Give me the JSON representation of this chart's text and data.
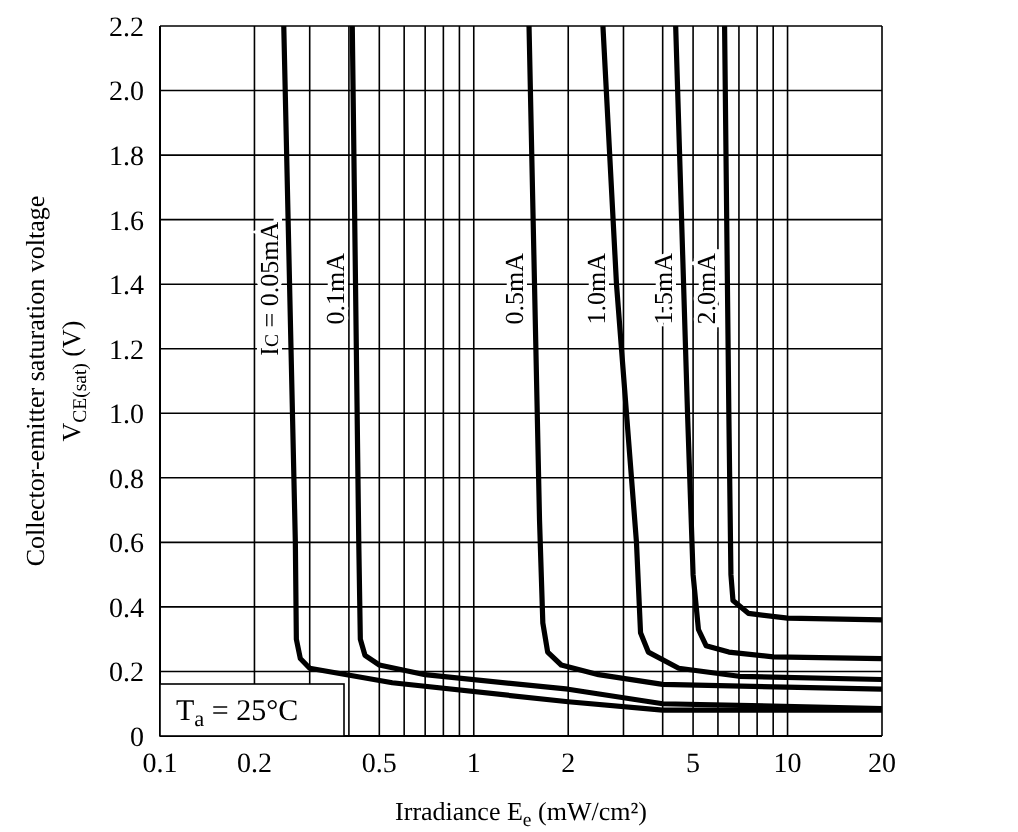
{
  "chart_data": {
    "type": "line",
    "xlabel": "Irradiance E$_{e}$ (mW/cm²)",
    "ylabel": "Collector-emitter saturation voltage\nV$_{CE(sat)}$ (V)",
    "log": "x",
    "grid": true,
    "marker": "none",
    "line_style": "solid",
    "xlim": [
      0.1,
      20
    ],
    "ylim": [
      0,
      2.2
    ],
    "xticks": [
      0.1,
      0.2,
      {
        "value": 0.3,
        "label": null
      },
      {
        "value": 0.4,
        "label": null
      },
      0.5,
      {
        "value": 0.6,
        "label": null
      },
      {
        "value": 0.7,
        "label": null
      },
      {
        "value": 0.8,
        "label": null
      },
      {
        "value": 0.9,
        "label": null
      },
      1,
      2,
      {
        "value": 3,
        "label": null
      },
      {
        "value": 4,
        "label": null
      },
      5,
      {
        "value": 6,
        "label": null
      },
      {
        "value": 7,
        "label": null
      },
      {
        "value": 8,
        "label": null
      },
      {
        "value": 9,
        "label": null
      },
      10,
      20
    ],
    "yticks": [
      0,
      0.2,
      0.4,
      0.6,
      0.8,
      {
        "value": 1,
        "label": "1.0"
      },
      1.2,
      1.4,
      1.6,
      1.8,
      {
        "value": 2,
        "label": "2.0"
      },
      2.2
    ],
    "series": [
      {
        "name": "I$_{C}$ = 0.05mA",
        "color": "#000000",
        "x": [
          0.248,
          0.27,
          0.272,
          0.28,
          0.3,
          0.55,
          2.0,
          4.0,
          20
        ],
        "values": [
          2.2,
          0.6,
          0.3,
          0.24,
          0.21,
          0.165,
          0.106,
          0.08,
          0.08
        ]
      },
      {
        "name": "0.1mA",
        "color": "#000000",
        "x": [
          0.41,
          0.43,
          0.435,
          0.45,
          0.5,
          0.7,
          2.0,
          4.0,
          20
        ],
        "values": [
          2.2,
          0.6,
          0.3,
          0.25,
          0.22,
          0.19,
          0.145,
          0.1,
          0.085
        ]
      },
      {
        "name": "0.5mA",
        "color": "#000000",
        "x": [
          1.5,
          1.62,
          1.66,
          1.72,
          1.9,
          2.5,
          4.0,
          20
        ],
        "values": [
          2.2,
          0.67,
          0.35,
          0.26,
          0.22,
          0.19,
          0.16,
          0.145
        ]
      },
      {
        "name": "1.0mA",
        "color": "#000000",
        "x": [
          2.58,
          2.85,
          3.3,
          3.4,
          3.6,
          4.5,
          7,
          20
        ],
        "values": [
          2.2,
          1.4,
          0.6,
          0.32,
          0.26,
          0.21,
          0.185,
          0.175
        ]
      },
      {
        "name": "1.5mA",
        "color": "#000000",
        "x": [
          4.4,
          4.8,
          5.0,
          5.2,
          5.5,
          6.5,
          9,
          20
        ],
        "values": [
          2.2,
          1.0,
          0.5,
          0.33,
          0.28,
          0.26,
          0.245,
          0.24
        ]
      },
      {
        "name": "2.0mA",
        "color": "#000000",
        "x": [
          6.3,
          6.5,
          6.6,
          6.7,
          7.5,
          10,
          20
        ],
        "values": [
          2.2,
          1.0,
          0.5,
          0.42,
          0.38,
          0.365,
          0.36
        ]
      }
    ],
    "annotations": [
      "T$_{a}$ = 25°C"
    ]
  }
}
